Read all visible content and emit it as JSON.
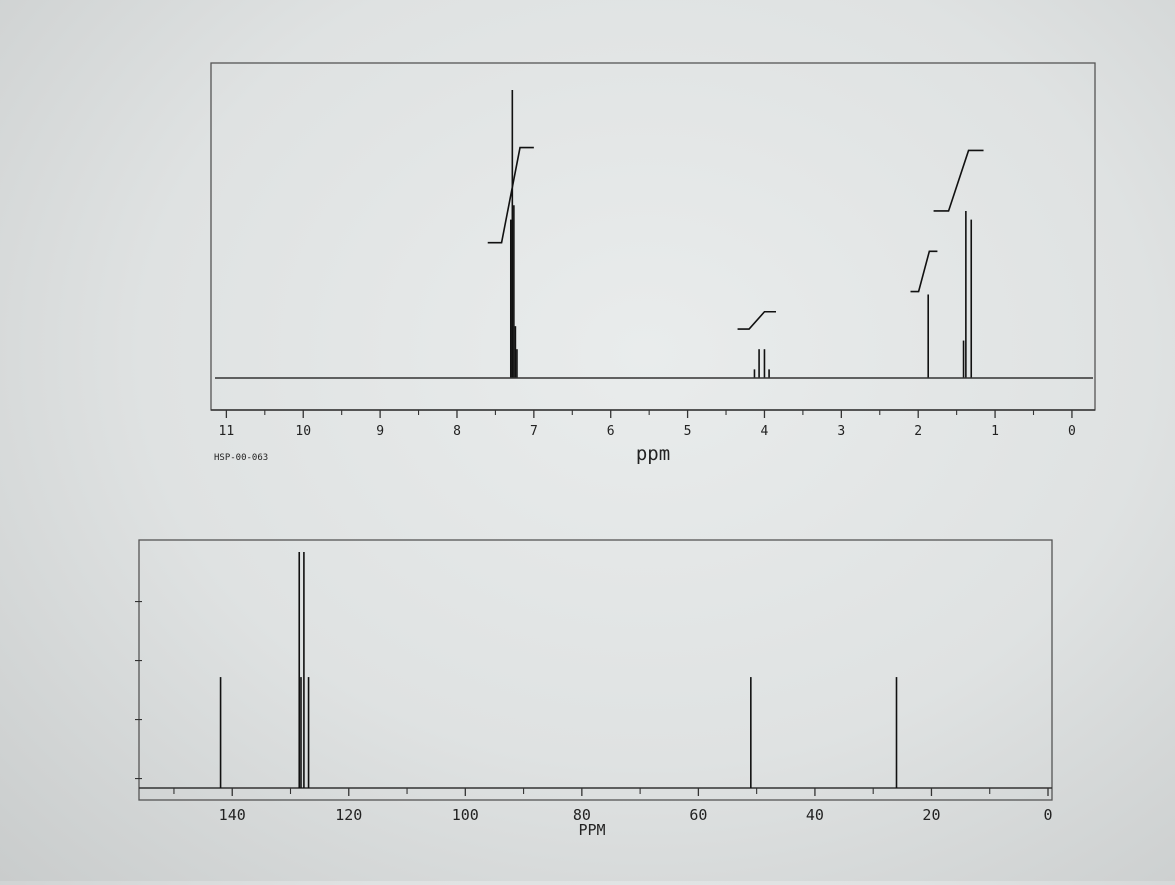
{
  "chart_data": [
    {
      "type": "line",
      "xlabel": "ppm",
      "sample_id": "HSP-00-063",
      "xlim": [
        11.2,
        -0.3
      ],
      "x_reversed": true,
      "ticks": [
        "11",
        "10",
        "9",
        "8",
        "7",
        "6",
        "5",
        "4",
        "3",
        "2",
        "1",
        "0"
      ],
      "peaks": [
        {
          "ppm": 7.3,
          "height": 0.55
        },
        {
          "ppm": 7.28,
          "height": 1.0
        },
        {
          "ppm": 7.26,
          "height": 0.6
        },
        {
          "ppm": 7.24,
          "height": 0.18
        },
        {
          "ppm": 7.22,
          "height": 0.1
        },
        {
          "ppm": 4.13,
          "height": 0.03
        },
        {
          "ppm": 4.07,
          "height": 0.1
        },
        {
          "ppm": 4.0,
          "height": 0.1
        },
        {
          "ppm": 3.94,
          "height": 0.03
        },
        {
          "ppm": 1.87,
          "height": 0.29
        },
        {
          "ppm": 1.41,
          "height": 0.13
        },
        {
          "ppm": 1.38,
          "height": 0.58
        },
        {
          "ppm": 1.31,
          "height": 0.55
        }
      ],
      "integrals": [
        {
          "from": 7.6,
          "to": 7.0,
          "y0": 0.47,
          "y1": 0.8
        },
        {
          "from": 4.35,
          "to": 3.85,
          "y0": 0.17,
          "y1": 0.23
        },
        {
          "from": 2.1,
          "to": 1.75,
          "y0": 0.3,
          "y1": 0.44
        },
        {
          "from": 1.8,
          "to": 1.15,
          "y0": 0.58,
          "y1": 0.79
        }
      ]
    },
    {
      "type": "line",
      "xlabel": "PPM",
      "xlim": [
        156,
        0
      ],
      "x_reversed": true,
      "ticks": [
        "140",
        "120",
        "100",
        "80",
        "60",
        "40",
        "20",
        "0"
      ],
      "peaks": [
        {
          "ppm": 142.0,
          "height": 0.47
        },
        {
          "ppm": 128.5,
          "height": 1.0
        },
        {
          "ppm": 128.2,
          "height": 0.47
        },
        {
          "ppm": 127.7,
          "height": 1.0
        },
        {
          "ppm": 126.9,
          "height": 0.47
        },
        {
          "ppm": 51.0,
          "height": 0.47
        },
        {
          "ppm": 26.0,
          "height": 0.47
        }
      ]
    }
  ]
}
